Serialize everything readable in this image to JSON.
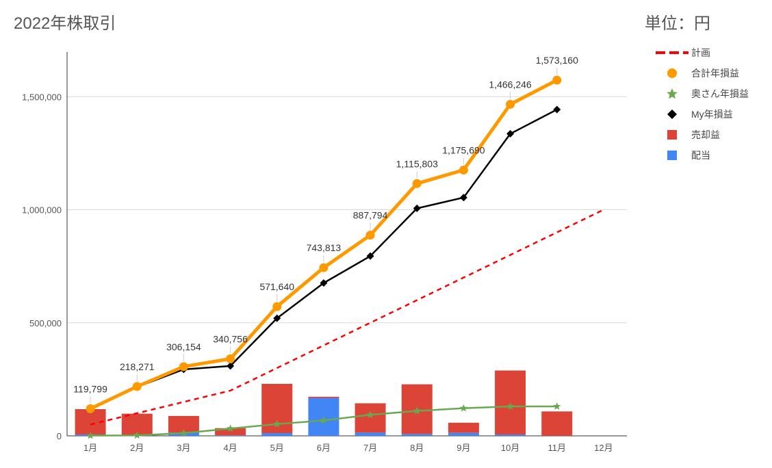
{
  "chart_data": {
    "type": "combo",
    "title": "2022年株取引",
    "unit": "単位：円",
    "categories": [
      "1月",
      "2月",
      "3月",
      "4月",
      "5月",
      "6月",
      "7月",
      "8月",
      "9月",
      "10月",
      "11月",
      "12月"
    ],
    "ylim": [
      0,
      1700000
    ],
    "y_ticks": [
      0,
      500000,
      1000000,
      1500000
    ],
    "y_tick_labels": [
      "0",
      "500,000",
      "1,000,000",
      "1,500,000"
    ],
    "grid": true,
    "legend_position": "top-right",
    "series": [
      {
        "name": "計画",
        "type": "line-dashed",
        "color": "#ff0000",
        "values": [
          50000,
          100000,
          150000,
          200000,
          300000,
          400000,
          500000,
          600000,
          700000,
          800000,
          900000,
          1000000
        ]
      },
      {
        "name": "合計年損益",
        "type": "line-circle",
        "color": "#ff9900",
        "values": [
          119799,
          218271,
          306154,
          340756,
          571640,
          743813,
          887794,
          1115803,
          1175690,
          1466246,
          1573160,
          null
        ]
      },
      {
        "name": "奥さん年損益",
        "type": "line-star",
        "color": "#6aa84f",
        "values": [
          1000,
          2000,
          12000,
          32000,
          52000,
          68000,
          93000,
          110000,
          122000,
          130000,
          130000,
          null
        ]
      },
      {
        "name": "My年損益",
        "type": "line-diamond",
        "color": "#000000",
        "values": [
          118000,
          216000,
          294000,
          309000,
          520000,
          676000,
          795000,
          1006000,
          1054000,
          1336000,
          1443000,
          null
        ]
      },
      {
        "name": "売却益",
        "type": "stacked-bar",
        "color": "#db4437",
        "values": [
          112000,
          95000,
          73000,
          32000,
          218000,
          5000,
          130000,
          220000,
          45000,
          283000,
          108000,
          null
        ]
      },
      {
        "name": "配当",
        "type": "stacked-bar",
        "color": "#4285f4",
        "values": [
          6000,
          3000,
          15000,
          2000,
          12000,
          168000,
          14000,
          8000,
          13000,
          6000,
          0,
          null
        ]
      }
    ],
    "data_labels": [
      "119,799",
      "218,271",
      "306,154",
      "340,756",
      "571,640",
      "743,813",
      "887,794",
      "1,115,803",
      "1,175,690",
      "1,466,246",
      "1,573,160"
    ]
  },
  "legend": [
    {
      "label": "計画",
      "icon": "dashed-line-icon",
      "color": "#ff0000"
    },
    {
      "label": "合計年損益",
      "icon": "circle-marker-icon",
      "color": "#ff9900"
    },
    {
      "label": "奥さん年損益",
      "icon": "star-marker-icon",
      "color": "#6aa84f"
    },
    {
      "label": "My年損益",
      "icon": "diamond-marker-icon",
      "color": "#000000"
    },
    {
      "label": "売却益",
      "icon": "square-swatch-icon",
      "color": "#db4437"
    },
    {
      "label": "配当",
      "icon": "square-swatch-icon",
      "color": "#4285f4"
    }
  ]
}
